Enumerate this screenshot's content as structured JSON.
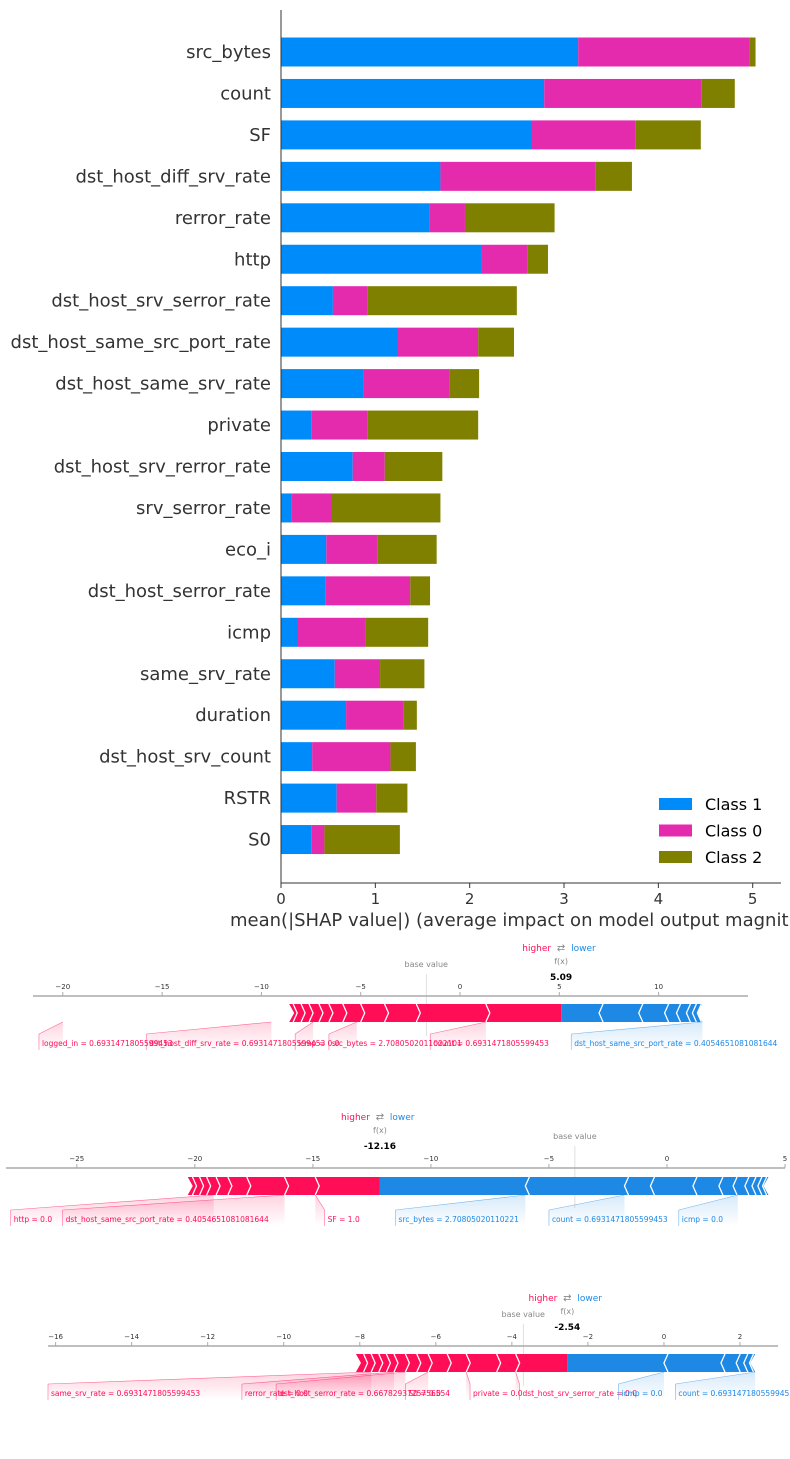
{
  "chart_data": [
    {
      "type": "bar",
      "orientation": "horizontal",
      "stacked": true,
      "title": "",
      "xlabel": "mean(|SHAP value|) (average impact on model output magnit",
      "ylabel": "",
      "xlim": [
        0,
        5.3
      ],
      "x_ticks": [
        "0",
        "1",
        "2",
        "3",
        "4",
        "5"
      ],
      "grid": false,
      "legend_position": "lower-right",
      "categories": [
        "src_bytes",
        "count",
        "SF",
        "dst_host_diff_srv_rate",
        "rerror_rate",
        "http",
        "dst_host_srv_serror_rate",
        "dst_host_same_src_port_rate",
        "dst_host_same_srv_rate",
        "private",
        "dst_host_srv_rerror_rate",
        "srv_serror_rate",
        "eco_i",
        "dst_host_serror_rate",
        "icmp",
        "same_srv_rate",
        "duration",
        "dst_host_srv_count",
        "RSTR",
        "S0"
      ],
      "series": [
        {
          "name": "Class 1",
          "color": "#008bfb",
          "values": [
            3.15,
            2.79,
            2.65,
            1.69,
            1.57,
            2.13,
            0.55,
            1.24,
            0.87,
            0.32,
            0.76,
            0.11,
            0.48,
            0.47,
            0.18,
            0.57,
            0.69,
            0.33,
            0.59,
            0.32
          ]
        },
        {
          "name": "Class 0",
          "color": "#e42aad",
          "values": [
            1.82,
            1.67,
            1.11,
            1.64,
            0.38,
            0.48,
            0.37,
            0.85,
            0.92,
            0.6,
            0.34,
            0.42,
            0.54,
            0.9,
            0.72,
            0.48,
            0.61,
            0.83,
            0.42,
            0.14
          ]
        },
        {
          "name": "Class 2",
          "color": "#808000",
          "values": [
            0.06,
            0.35,
            0.69,
            0.39,
            0.95,
            0.22,
            1.58,
            0.38,
            0.31,
            1.17,
            0.61,
            1.16,
            0.63,
            0.21,
            0.66,
            0.47,
            0.14,
            0.27,
            0.33,
            0.8
          ]
        }
      ],
      "colors": {
        "axis": "#333333",
        "label": "#333333"
      }
    },
    {
      "type": "force",
      "label_higher": "higher",
      "label_lower": "lower",
      "label_arrows": "⇄",
      "label_fx": "f(x)",
      "label_base": "base value",
      "fx_text": "5.09",
      "fx": 5.09,
      "base_value": -1.7,
      "xlim": [
        -21.5,
        14.5
      ],
      "ticks": [
        -20,
        -15,
        -10,
        -5,
        0,
        5,
        10
      ],
      "tick_labels": [
        "−20",
        "−15",
        "−10",
        "−5",
        "0",
        "5",
        "10"
      ],
      "red_start": -8.6,
      "blue_end": 12.2,
      "red_chevrons": [
        -8.4,
        -8.0,
        -7.6,
        -7.1,
        -6.6,
        -5.9,
        -5.0,
        -3.8,
        -2.2,
        1.3
      ],
      "blue_chevrons": [
        7.0,
        9.0,
        10.3,
        10.9,
        11.4,
        11.7,
        11.95
      ],
      "red_labels": [
        {
          "text": "logged_in = 0.6931471805599453",
          "anchor": -20.0,
          "pos": -21.2
        },
        {
          "text": "dst_host_diff_srv_rate = 0.6931471805599453",
          "anchor": -9.5,
          "pos": -15.8
        },
        {
          "text": "icmp = 0.0",
          "anchor": -7.4,
          "pos": -8.3
        },
        {
          "text": "src_bytes = 2.7080502011022101",
          "anchor": -5.2,
          "pos": -6.6
        },
        {
          "text": "count = 0.6931471805599453",
          "anchor": 1.3,
          "pos": -1.5
        }
      ],
      "blue_labels": [
        {
          "text": "dst_host_same_src_port_rate = 0.4054651081081644",
          "anchor": 12.2,
          "pos": 5.6
        }
      ],
      "colors": {
        "positive": "#ff0d57",
        "negative": "#1e88e5"
      }
    },
    {
      "type": "force",
      "label_higher": "higher",
      "label_lower": "lower",
      "label_arrows": "⇄",
      "label_fx": "f(x)",
      "label_base": "base value",
      "fx_text": "-12.16",
      "fx": -12.16,
      "base_value": -3.9,
      "xlim": [
        -28.0,
        5.0
      ],
      "ticks": [
        -25,
        -20,
        -15,
        -10,
        -5,
        0,
        5
      ],
      "tick_labels": [
        "−25",
        "−20",
        "−15",
        "−10",
        "−5",
        "0",
        "5"
      ],
      "red_start": -20.3,
      "blue_end": 4.3,
      "red_chevrons": [
        -20.1,
        -19.8,
        -19.5,
        -19.1,
        -18.6,
        -17.8,
        -16.2,
        -14.9
      ],
      "blue_chevrons": [
        -6.0,
        -1.8,
        -0.7,
        1.1,
        2.2,
        2.8,
        3.3,
        3.6,
        3.85,
        4.05
      ],
      "red_labels": [
        {
          "text": "http = 0.0",
          "anchor": -19.2,
          "pos": -27.8
        },
        {
          "text": "dst_host_same_src_port_rate = 0.4054651081081644",
          "anchor": -16.2,
          "pos": -25.6
        },
        {
          "text": "SF = 1.0",
          "anchor": -14.9,
          "pos": -14.5
        }
      ],
      "blue_labels": [
        {
          "text": "src_bytes = 2.70805020110221",
          "anchor": -6.0,
          "pos": -11.5
        },
        {
          "text": "count = 0.6931471805599453",
          "anchor": -1.8,
          "pos": -5.0
        },
        {
          "text": "icmp = 0.0",
          "anchor": 3.0,
          "pos": 0.5
        }
      ],
      "colors": {
        "positive": "#ff0d57",
        "negative": "#1e88e5"
      }
    },
    {
      "type": "force",
      "label_higher": "higher",
      "label_lower": "lower",
      "label_arrows": "⇄",
      "label_fx": "f(x)",
      "label_base": "base value",
      "fx_text": "-2.54",
      "fx": -2.54,
      "base_value": -3.7,
      "xlim": [
        -16.2,
        3.0
      ],
      "ticks": [
        -16,
        -14,
        -12,
        -10,
        -8,
        -6,
        -4,
        -2,
        0,
        2
      ],
      "tick_labels": [
        "−16",
        "−14",
        "−12",
        "−10",
        "−8",
        "−6",
        "−4",
        "−2",
        "0",
        "2"
      ],
      "red_start": -8.1,
      "blue_end": 2.4,
      "red_chevrons": [
        -7.9,
        -7.7,
        -7.5,
        -7.3,
        -7.1,
        -6.8,
        -6.5,
        -6.2,
        -5.7,
        -5.2,
        -4.4,
        -3.9
      ],
      "blue_chevrons": [
        0.0,
        1.5,
        1.9,
        2.1,
        2.25
      ],
      "red_labels": [
        {
          "text": "same_srv_rate = 0.6931471805599453",
          "anchor": -7.7,
          "pos": -16.2
        },
        {
          "text": "rerror_rate = 0.0",
          "anchor": -7.1,
          "pos": -11.1
        },
        {
          "text": "dst_host_serror_rate = 0.6678293725756554",
          "anchor": -6.8,
          "pos": -10.2
        },
        {
          "text": "S0 = 0.0",
          "anchor": -6.2,
          "pos": -6.8
        },
        {
          "text": "private = 0.0",
          "anchor": -5.2,
          "pos": -5.1
        },
        {
          "text": "dst_host_srv_serror_rate = 0.0",
          "anchor": -3.9,
          "pos": -3.8
        }
      ],
      "blue_labels": [
        {
          "text": "icmp = 0.0",
          "anchor": 0.0,
          "pos": -1.2
        },
        {
          "text": "count = 0.6931471805599453",
          "anchor": 2.4,
          "pos": 0.3
        }
      ],
      "colors": {
        "positive": "#ff0d57",
        "negative": "#1e88e5"
      }
    }
  ]
}
